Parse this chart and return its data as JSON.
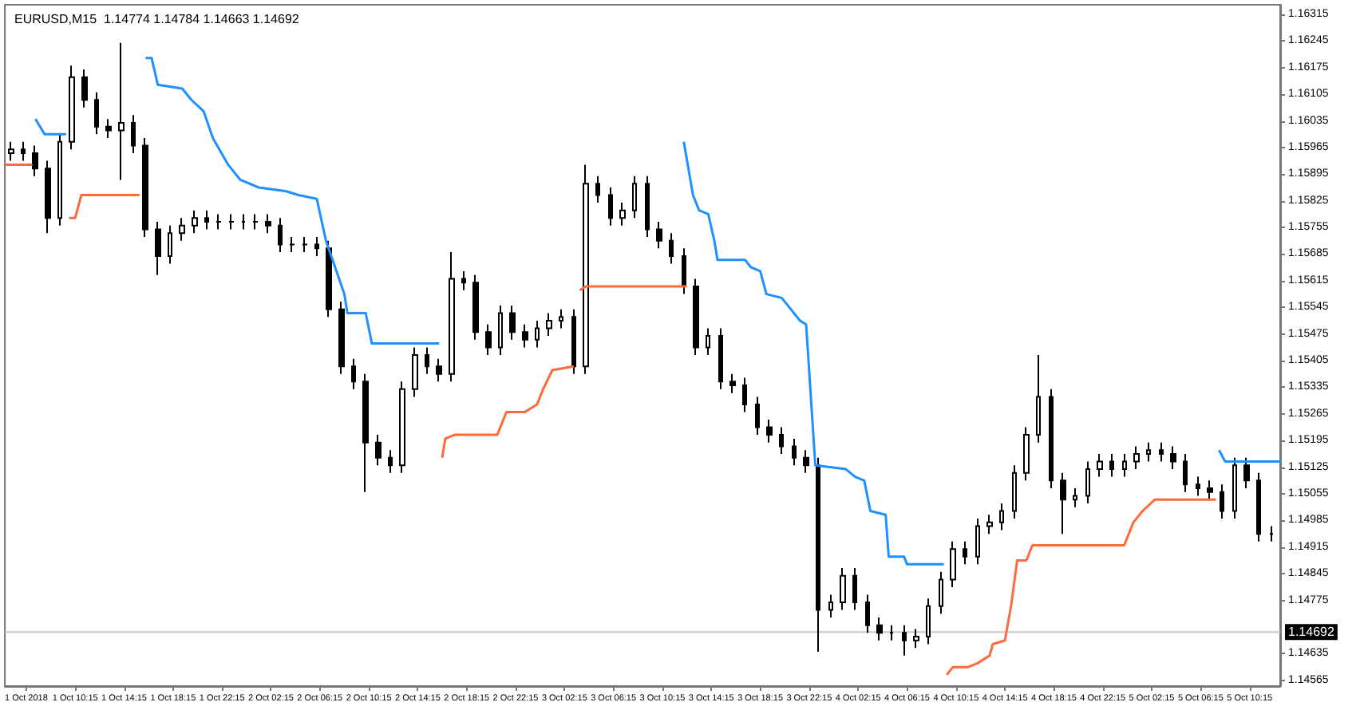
{
  "chart_data": {
    "type": "candlestick",
    "title": "EURUSD,M15  1.14774 1.14784 1.14663 1.14692",
    "xlim": [
      "2018-10-01T04:30",
      "2018-10-05T12:45"
    ],
    "xticks": [
      {
        "value": "2018-10-01T06:15",
        "label": "1 Oct 2018"
      },
      {
        "value": "2018-10-01T10:15",
        "label": "1 Oct 10:15"
      },
      {
        "value": "2018-10-01T14:15",
        "label": "1 Oct 14:15"
      },
      {
        "value": "2018-10-01T18:15",
        "label": "1 Oct 18:15"
      },
      {
        "value": "2018-10-01T22:15",
        "label": "1 Oct 22:15"
      },
      {
        "value": "2018-10-02T02:15",
        "label": "2 Oct 02:15"
      },
      {
        "value": "2018-10-02T06:15",
        "label": "2 Oct 06:15"
      },
      {
        "value": "2018-10-02T10:15",
        "label": "2 Oct 10:15"
      },
      {
        "value": "2018-10-02T14:15",
        "label": "2 Oct 14:15"
      },
      {
        "value": "2018-10-02T18:15",
        "label": "2 Oct 18:15"
      },
      {
        "value": "2018-10-02T22:15",
        "label": "2 Oct 22:15"
      },
      {
        "value": "2018-10-03T02:15",
        "label": "3 Oct 02:15"
      },
      {
        "value": "2018-10-03T06:15",
        "label": "3 Oct 06:15"
      },
      {
        "value": "2018-10-03T10:15",
        "label": "3 Oct 10:15"
      },
      {
        "value": "2018-10-03T14:15",
        "label": "3 Oct 14:15"
      },
      {
        "value": "2018-10-03T18:15",
        "label": "3 Oct 18:15"
      },
      {
        "value": "2018-10-03T22:15",
        "label": "3 Oct 22:15"
      },
      {
        "value": "2018-10-04T02:15",
        "label": "4 Oct 02:15"
      },
      {
        "value": "2018-10-04T06:15",
        "label": "4 Oct 06:15"
      },
      {
        "value": "2018-10-04T10:15",
        "label": "4 Oct 10:15"
      },
      {
        "value": "2018-10-04T14:15",
        "label": "4 Oct 14:15"
      },
      {
        "value": "2018-10-04T18:15",
        "label": "4 Oct 18:15"
      },
      {
        "value": "2018-10-04T22:15",
        "label": "4 Oct 22:15"
      },
      {
        "value": "2018-10-05T02:15",
        "label": "5 Oct 02:15"
      },
      {
        "value": "2018-10-05T06:15",
        "label": "5 Oct 06:15"
      },
      {
        "value": "2018-10-05T10:15",
        "label": "5 Oct 10:15"
      }
    ],
    "ylim": [
      1.1455,
      1.1634
    ],
    "yticks": [
      1.16315,
      1.16245,
      1.16175,
      1.16105,
      1.16035,
      1.15965,
      1.15895,
      1.15825,
      1.15755,
      1.15685,
      1.15615,
      1.15545,
      1.15475,
      1.15405,
      1.15335,
      1.15265,
      1.15195,
      1.15125,
      1.15055,
      1.14985,
      1.14915,
      1.14845,
      1.14775,
      1.14635,
      1.14565
    ],
    "ref_lines": [
      {
        "axis": "y",
        "value": 1.14692,
        "label": "1.14692",
        "color": "#c8c8c8"
      }
    ],
    "series": [
      {
        "color": "#000000",
        "x": [
          "2018-10-01T05:00",
          "2018-10-01T06:00",
          "2018-10-01T07:00",
          "2018-10-01T08:00",
          "2018-10-01T09:00",
          "2018-10-01T10:00",
          "2018-10-01T11:00",
          "2018-10-01T12:00",
          "2018-10-01T13:00",
          "2018-10-01T14:00",
          "2018-10-01T15:00",
          "2018-10-01T16:00",
          "2018-10-01T17:00",
          "2018-10-01T18:00",
          "2018-10-01T19:00",
          "2018-10-01T20:00",
          "2018-10-01T21:00",
          "2018-10-01T22:00",
          "2018-10-01T23:00",
          "2018-10-02T00:00",
          "2018-10-02T01:00",
          "2018-10-02T02:00",
          "2018-10-02T03:00",
          "2018-10-02T04:00",
          "2018-10-02T05:00",
          "2018-10-02T06:00",
          "2018-10-02T07:00",
          "2018-10-02T08:00",
          "2018-10-02T09:00",
          "2018-10-02T10:00",
          "2018-10-02T11:00",
          "2018-10-02T12:00",
          "2018-10-02T13:00",
          "2018-10-02T14:00",
          "2018-10-02T15:00",
          "2018-10-02T16:00",
          "2018-10-02T17:00",
          "2018-10-02T18:00",
          "2018-10-02T19:00",
          "2018-10-02T20:00",
          "2018-10-02T21:00",
          "2018-10-02T22:00",
          "2018-10-02T23:00",
          "2018-10-03T00:00",
          "2018-10-03T01:00",
          "2018-10-03T02:00",
          "2018-10-03T03:00",
          "2018-10-03T04:00",
          "2018-10-03T05:00",
          "2018-10-03T06:00",
          "2018-10-03T07:00",
          "2018-10-03T08:00",
          "2018-10-03T09:00",
          "2018-10-03T10:00",
          "2018-10-03T11:00",
          "2018-10-03T12:00",
          "2018-10-03T13:00",
          "2018-10-03T14:00",
          "2018-10-03T15:00",
          "2018-10-03T16:00",
          "2018-10-03T17:00",
          "2018-10-03T18:00",
          "2018-10-03T19:00",
          "2018-10-03T20:00",
          "2018-10-03T21:00",
          "2018-10-03T22:00",
          "2018-10-03T23:00",
          "2018-10-04T00:00",
          "2018-10-04T01:00",
          "2018-10-04T02:00",
          "2018-10-04T03:00",
          "2018-10-04T04:00",
          "2018-10-04T05:00",
          "2018-10-04T06:00",
          "2018-10-04T07:00",
          "2018-10-04T08:00",
          "2018-10-04T09:00",
          "2018-10-04T10:00",
          "2018-10-04T11:00",
          "2018-10-04T12:00",
          "2018-10-04T13:00",
          "2018-10-04T14:00",
          "2018-10-04T15:00",
          "2018-10-04T16:00",
          "2018-10-04T17:00",
          "2018-10-04T18:00",
          "2018-10-04T19:00",
          "2018-10-04T20:00",
          "2018-10-04T21:00",
          "2018-10-04T22:00",
          "2018-10-04T23:00",
          "2018-10-05T00:00",
          "2018-10-05T01:00",
          "2018-10-05T02:00",
          "2018-10-05T03:00",
          "2018-10-05T04:00",
          "2018-10-05T05:00",
          "2018-10-05T06:00",
          "2018-10-05T07:00",
          "2018-10-05T08:00",
          "2018-10-05T09:00",
          "2018-10-05T10:00",
          "2018-10-05T11:00",
          "2018-10-05T12:00"
        ],
        "ohlc": [
          [
            1.1595,
            1.1598,
            1.1593,
            1.1596
          ],
          [
            1.1596,
            1.1598,
            1.1593,
            1.1595
          ],
          [
            1.1595,
            1.1597,
            1.1589,
            1.1591
          ],
          [
            1.1591,
            1.1593,
            1.1574,
            1.1578
          ],
          [
            1.1578,
            1.16,
            1.1576,
            1.1598
          ],
          [
            1.1598,
            1.1618,
            1.1596,
            1.1615
          ],
          [
            1.1615,
            1.1617,
            1.1607,
            1.1609
          ],
          [
            1.1609,
            1.1611,
            1.16,
            1.1602
          ],
          [
            1.1602,
            1.1604,
            1.1599,
            1.1601
          ],
          [
            1.1601,
            1.1624,
            1.1588,
            1.1603
          ],
          [
            1.1603,
            1.1605,
            1.1595,
            1.1597
          ],
          [
            1.1597,
            1.1599,
            1.1573,
            1.1575
          ],
          [
            1.1575,
            1.1577,
            1.1563,
            1.1568
          ],
          [
            1.1568,
            1.1576,
            1.1566,
            1.1574
          ],
          [
            1.1574,
            1.1578,
            1.1572,
            1.1576
          ],
          [
            1.1576,
            1.158,
            1.1574,
            1.1578
          ],
          [
            1.1578,
            1.158,
            1.1575,
            1.1577
          ],
          [
            1.1577,
            1.1579,
            1.1575,
            1.1577
          ],
          [
            1.1577,
            1.1579,
            1.1575,
            1.1577
          ],
          [
            1.1577,
            1.1579,
            1.1575,
            1.1577
          ],
          [
            1.1577,
            1.1579,
            1.1575,
            1.1577
          ],
          [
            1.1577,
            1.1579,
            1.1574,
            1.1576
          ],
          [
            1.1576,
            1.1578,
            1.1569,
            1.1571
          ],
          [
            1.1571,
            1.1573,
            1.1569,
            1.1571
          ],
          [
            1.1571,
            1.1573,
            1.1569,
            1.1571
          ],
          [
            1.1571,
            1.1573,
            1.1568,
            1.157
          ],
          [
            1.157,
            1.1572,
            1.1552,
            1.1554
          ],
          [
            1.1554,
            1.1556,
            1.1537,
            1.1539
          ],
          [
            1.1539,
            1.1541,
            1.1533,
            1.1535
          ],
          [
            1.1535,
            1.1537,
            1.1506,
            1.1519
          ],
          [
            1.1519,
            1.1521,
            1.1513,
            1.1515
          ],
          [
            1.1515,
            1.1517,
            1.1511,
            1.1513
          ],
          [
            1.1513,
            1.1535,
            1.1511,
            1.1533
          ],
          [
            1.1533,
            1.1544,
            1.1531,
            1.1542
          ],
          [
            1.1542,
            1.1544,
            1.1537,
            1.1539
          ],
          [
            1.1539,
            1.1541,
            1.1535,
            1.1537
          ],
          [
            1.1537,
            1.1569,
            1.1535,
            1.1562
          ],
          [
            1.1562,
            1.1564,
            1.1559,
            1.1561
          ],
          [
            1.1561,
            1.1563,
            1.1546,
            1.1548
          ],
          [
            1.1548,
            1.155,
            1.1542,
            1.1544
          ],
          [
            1.1544,
            1.1555,
            1.1542,
            1.1553
          ],
          [
            1.1553,
            1.1555,
            1.1546,
            1.1548
          ],
          [
            1.1548,
            1.155,
            1.1544,
            1.1546
          ],
          [
            1.1546,
            1.1551,
            1.1544,
            1.1549
          ],
          [
            1.1549,
            1.1553,
            1.1547,
            1.1551
          ],
          [
            1.1551,
            1.1554,
            1.1549,
            1.1552
          ],
          [
            1.1552,
            1.1554,
            1.1537,
            1.1539
          ],
          [
            1.1539,
            1.1592,
            1.1537,
            1.1587
          ],
          [
            1.1587,
            1.1589,
            1.1582,
            1.1584
          ],
          [
            1.1584,
            1.1586,
            1.1576,
            1.1578
          ],
          [
            1.1578,
            1.1582,
            1.1576,
            1.158
          ],
          [
            1.158,
            1.1589,
            1.1578,
            1.1587
          ],
          [
            1.1587,
            1.1589,
            1.1573,
            1.1575
          ],
          [
            1.1575,
            1.1577,
            1.157,
            1.1572
          ],
          [
            1.1572,
            1.1574,
            1.1566,
            1.1568
          ],
          [
            1.1568,
            1.157,
            1.1558,
            1.156
          ],
          [
            1.156,
            1.1562,
            1.1542,
            1.1544
          ],
          [
            1.1544,
            1.1549,
            1.1542,
            1.1547
          ],
          [
            1.1547,
            1.1549,
            1.1533,
            1.1535
          ],
          [
            1.1535,
            1.1537,
            1.1532,
            1.1534
          ],
          [
            1.1534,
            1.1536,
            1.1527,
            1.1529
          ],
          [
            1.1529,
            1.1531,
            1.1521,
            1.1523
          ],
          [
            1.1523,
            1.1525,
            1.1519,
            1.1521
          ],
          [
            1.1521,
            1.1523,
            1.1516,
            1.1518
          ],
          [
            1.1518,
            1.152,
            1.1513,
            1.1515
          ],
          [
            1.1515,
            1.1517,
            1.1511,
            1.1513
          ],
          [
            1.1513,
            1.1515,
            1.1464,
            1.1475
          ],
          [
            1.1475,
            1.1479,
            1.1473,
            1.1477
          ],
          [
            1.1477,
            1.1486,
            1.1475,
            1.1484
          ],
          [
            1.1484,
            1.1486,
            1.1475,
            1.1477
          ],
          [
            1.1477,
            1.1479,
            1.1469,
            1.1471
          ],
          [
            1.1471,
            1.1473,
            1.1467,
            1.1469
          ],
          [
            1.1469,
            1.1471,
            1.1467,
            1.1469
          ],
          [
            1.1469,
            1.1471,
            1.1463,
            1.1467
          ],
          [
            1.1467,
            1.147,
            1.1465,
            1.1468
          ],
          [
            1.1468,
            1.1478,
            1.1466,
            1.1476
          ],
          [
            1.1476,
            1.1485,
            1.1474,
            1.1483
          ],
          [
            1.1483,
            1.1493,
            1.1481,
            1.1491
          ],
          [
            1.1491,
            1.1493,
            1.1487,
            1.1489
          ],
          [
            1.1489,
            1.1499,
            1.1487,
            1.1497
          ],
          [
            1.1497,
            1.15,
            1.1495,
            1.1498
          ],
          [
            1.1498,
            1.1503,
            1.1496,
            1.1501
          ],
          [
            1.1501,
            1.1513,
            1.1499,
            1.1511
          ],
          [
            1.1511,
            1.1523,
            1.1509,
            1.1521
          ],
          [
            1.1521,
            1.1542,
            1.1519,
            1.1531
          ],
          [
            1.1531,
            1.1533,
            1.1507,
            1.1509
          ],
          [
            1.1509,
            1.1511,
            1.1495,
            1.1504
          ],
          [
            1.1504,
            1.1507,
            1.1502,
            1.1505
          ],
          [
            1.1505,
            1.1514,
            1.1503,
            1.1512
          ],
          [
            1.1512,
            1.1516,
            1.151,
            1.1514
          ],
          [
            1.1514,
            1.1516,
            1.151,
            1.1512
          ],
          [
            1.1512,
            1.1516,
            1.151,
            1.1514
          ],
          [
            1.1514,
            1.1518,
            1.1512,
            1.1516
          ],
          [
            1.1516,
            1.1519,
            1.1514,
            1.1517
          ],
          [
            1.1517,
            1.1519,
            1.1514,
            1.1516
          ],
          [
            1.1516,
            1.1518,
            1.1512,
            1.1514
          ],
          [
            1.1514,
            1.1516,
            1.1506,
            1.1508
          ],
          [
            1.1508,
            1.151,
            1.1505,
            1.1507
          ],
          [
            1.1507,
            1.1509,
            1.1504,
            1.1506
          ],
          [
            1.1506,
            1.1508,
            1.1499,
            1.1501
          ],
          [
            1.1501,
            1.1515,
            1.1499,
            1.1513
          ],
          [
            1.1513,
            1.1515,
            1.1507,
            1.1509
          ],
          [
            1.1509,
            1.1511,
            1.1493,
            1.1495
          ],
          [
            1.1495,
            1.1497,
            1.1493,
            1.1495
          ]
        ]
      },
      {
        "type": "line",
        "color": "#1e90ff",
        "x": [
          "2018-10-01T07:00",
          "2018-10-01T07:45",
          "2018-10-01T09:30",
          "2018-10-01T12:00",
          "2018-10-01T16:00",
          "2018-10-01T16:30",
          "2018-10-01T17:00",
          "2018-10-01T19:00",
          "2018-10-01T19:45",
          "2018-10-01T20:45",
          "2018-10-01T21:30",
          "2018-10-01T22:45",
          "2018-10-01T23:45",
          "2018-10-02T01:15",
          "2018-10-02T03:30",
          "2018-10-02T04:30",
          "2018-10-02T06:00",
          "2018-10-02T06:45",
          "2018-10-02T08:15",
          "2018-10-02T08:30",
          "2018-10-02T10:00",
          "2018-10-02T10:30",
          "2018-10-02T16:00",
          "2018-10-03T00:00",
          "2018-10-03T12:00",
          "2018-10-03T12:45",
          "2018-10-03T13:15",
          "2018-10-03T14:00",
          "2018-10-03T14:30",
          "2018-10-03T14:45",
          "2018-10-03T17:00",
          "2018-10-03T17:30",
          "2018-10-03T18:15",
          "2018-10-03T18:45",
          "2018-10-03T20:00",
          "2018-10-03T20:30",
          "2018-10-03T21:30",
          "2018-10-03T22:00",
          "2018-10-03T22:45",
          "2018-10-04T01:15",
          "2018-10-04T02:00",
          "2018-10-04T02:45",
          "2018-10-04T03:15",
          "2018-10-04T04:30",
          "2018-10-04T04:45",
          "2018-10-04T06:00",
          "2018-10-04T06:15",
          "2018-10-04T09:15",
          "2018-10-05T00:00",
          "2018-10-05T07:45",
          "2018-10-05T08:15",
          "2018-10-05T12:45"
        ],
        "values": [
          1.1604,
          1.16,
          1.16,
          null,
          1.162,
          1.162,
          1.1613,
          1.1612,
          1.1609,
          1.1606,
          1.1599,
          1.1592,
          1.1588,
          1.1586,
          1.1585,
          1.1584,
          1.1583,
          1.1572,
          1.1558,
          1.1553,
          1.1553,
          1.1545,
          1.1545,
          null,
          1.1598,
          1.1584,
          1.158,
          1.1579,
          1.1572,
          1.1567,
          1.1567,
          1.1565,
          1.1564,
          1.1558,
          1.1557,
          1.1555,
          1.1551,
          1.155,
          1.1513,
          1.1512,
          1.151,
          1.1509,
          1.1501,
          1.15,
          1.1489,
          1.1489,
          1.1487,
          1.1487,
          null,
          1.1517,
          1.1514,
          1.1514
        ]
      },
      {
        "type": "line",
        "color": "#ff6a3d",
        "x": [
          "2018-10-01T04:30",
          "2018-10-01T06:45",
          "2018-10-01T08:00",
          "2018-10-01T09:45",
          "2018-10-01T10:15",
          "2018-10-01T10:45",
          "2018-10-01T15:30",
          "2018-10-02T12:00",
          "2018-10-02T16:15",
          "2018-10-02T16:30",
          "2018-10-02T17:15",
          "2018-10-02T20:45",
          "2018-10-02T21:30",
          "2018-10-02T23:00",
          "2018-10-03T00:00",
          "2018-10-03T00:30",
          "2018-10-03T01:15",
          "2018-10-03T03:00",
          "2018-10-03T03:15",
          "2018-10-03T03:30",
          "2018-10-03T04:00",
          "2018-10-03T12:15",
          "2018-10-04T00:00",
          "2018-10-04T09:30",
          "2018-10-04T10:00",
          "2018-10-04T11:15",
          "2018-10-04T12:00",
          "2018-10-04T13:00",
          "2018-10-04T13:15",
          "2018-10-04T14:15",
          "2018-10-04T14:45",
          "2018-10-04T15:15",
          "2018-10-04T16:00",
          "2018-10-04T16:30",
          "2018-10-05T00:00",
          "2018-10-05T00:45",
          "2018-10-05T01:30",
          "2018-10-05T02:30",
          "2018-10-05T07:30"
        ],
        "values": [
          1.1592,
          1.1592,
          null,
          1.1578,
          1.1578,
          1.1584,
          1.1584,
          null,
          1.1515,
          1.152,
          1.1521,
          1.1521,
          1.1527,
          1.1527,
          1.1529,
          1.1533,
          1.1538,
          1.1539,
          null,
          1.1559,
          1.156,
          1.156,
          null,
          1.1458,
          1.146,
          1.146,
          1.1461,
          1.1463,
          1.1466,
          1.1467,
          1.1476,
          1.1488,
          1.1488,
          1.1492,
          1.1492,
          1.1498,
          1.1501,
          1.1504,
          1.1504
        ]
      }
    ]
  }
}
